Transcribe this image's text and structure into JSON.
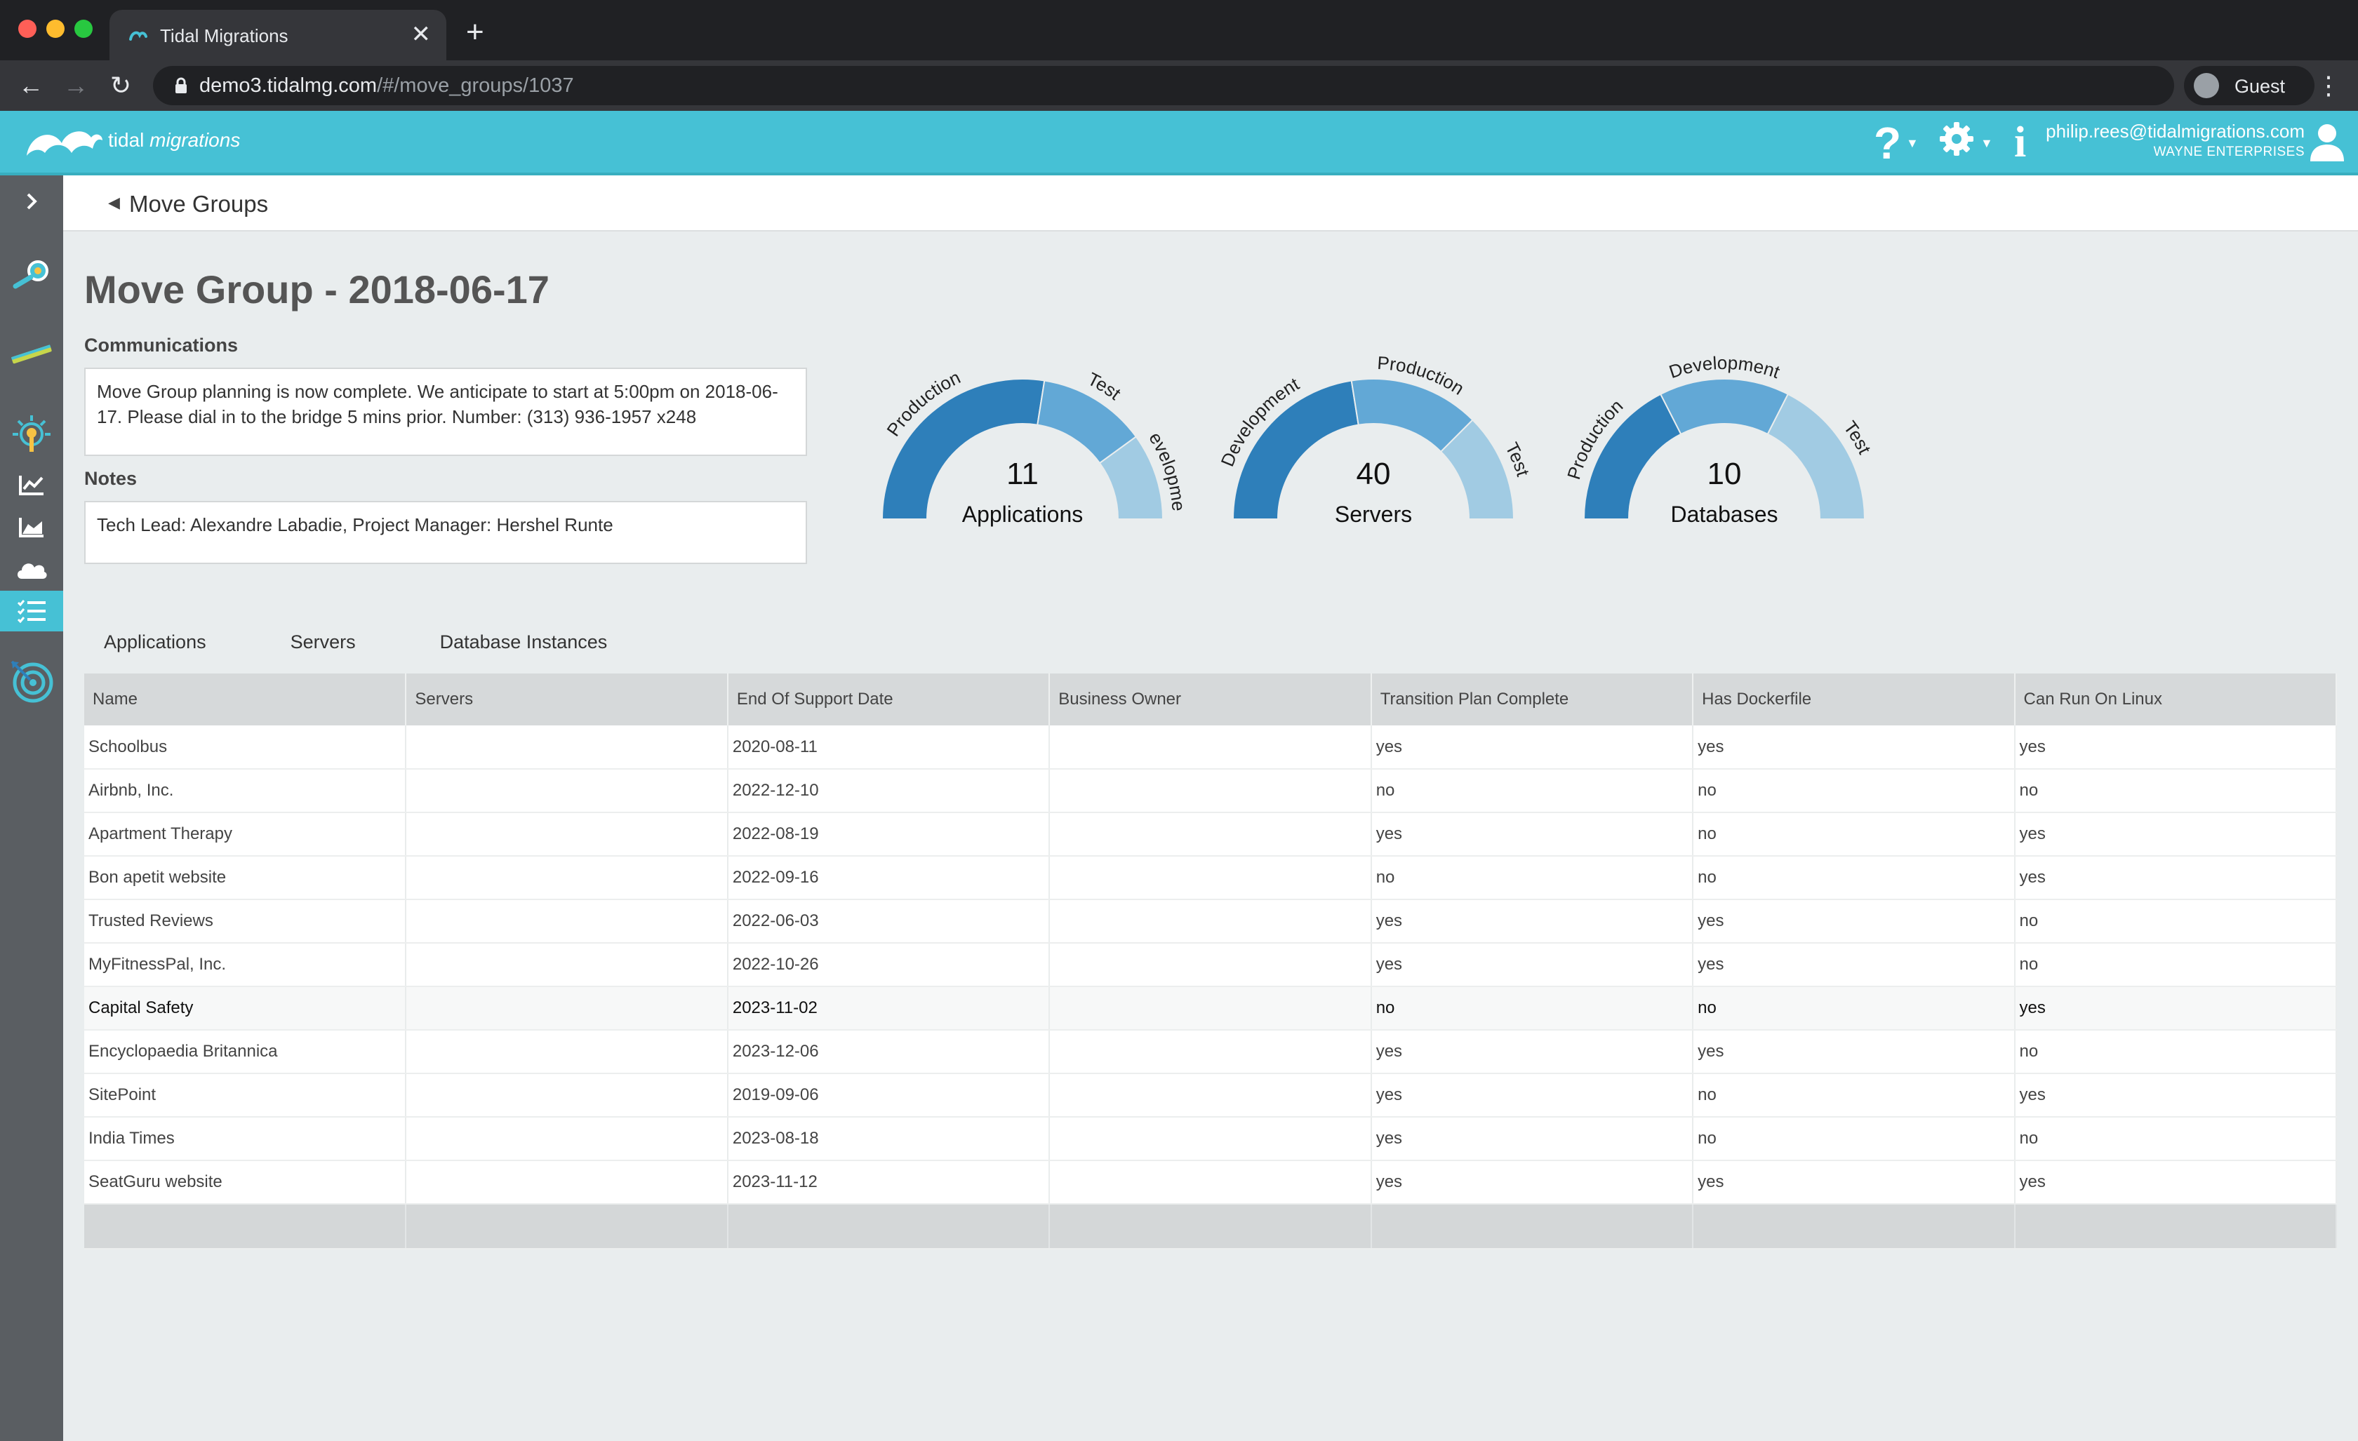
{
  "browser": {
    "tab_title": "Tidal Migrations",
    "new_tab_symbol": "+",
    "close_symbol": "✕",
    "url_host": "demo3.tidalmg.com",
    "url_path": "/#/move_groups/1037",
    "profile_name": "Guest"
  },
  "header": {
    "logo_word1": "tidal",
    "logo_word2": "migrations",
    "help_symbol": "?",
    "info_symbol": "i",
    "user_email": "philip.rees@tidalmigrations.com",
    "user_org": "WAYNE ENTERPRISES"
  },
  "sidebar": {
    "items": [
      {
        "name": "expand",
        "icon": "chevron-right-icon"
      },
      {
        "name": "discover",
        "icon": "magnifier-icon"
      },
      {
        "name": "measure",
        "icon": "ruler-icon"
      },
      {
        "name": "analyze",
        "icon": "lightbulb-icon"
      },
      {
        "name": "trends",
        "icon": "line-chart-icon"
      },
      {
        "name": "insights",
        "icon": "area-chart-icon"
      },
      {
        "name": "cloud",
        "icon": "cloud-icon"
      },
      {
        "name": "plan",
        "icon": "checklist-icon",
        "active": true
      },
      {
        "name": "target",
        "icon": "target-icon"
      }
    ]
  },
  "breadcrumb": {
    "label": "Move Groups"
  },
  "page": {
    "title": "Move Group - 2018-06-17",
    "communications_label": "Communications",
    "communications_text": "Move Group planning is now complete. We anticipate to start at 5:00pm on 2018-06-17. Please dial in to the bridge 5 mins prior. Number: (313) 936-1957 x248",
    "notes_label": "Notes",
    "notes_text": "Tech Lead: Alexandre Labadie, Project Manager: Hershel Runte"
  },
  "colors": {
    "brand": "#46c1d5",
    "gauge_dark": "#2e7fba",
    "gauge_mid": "#62a8d6",
    "gauge_light": "#a1cbe3"
  },
  "gauges": [
    {
      "count": "11",
      "label": "Applications",
      "segments": [
        {
          "name": "Production",
          "fraction": 0.55
        },
        {
          "name": "Test",
          "fraction": 0.25
        },
        {
          "name": "evelopme",
          "fraction": 0.2
        }
      ]
    },
    {
      "count": "40",
      "label": "Servers",
      "segments": [
        {
          "name": "Development",
          "fraction": 0.45
        },
        {
          "name": "Production",
          "fraction": 0.3
        },
        {
          "name": "Test",
          "fraction": 0.25
        }
      ]
    },
    {
      "count": "10",
      "label": "Databases",
      "segments": [
        {
          "name": "Production",
          "fraction": 0.35
        },
        {
          "name": "Development",
          "fraction": 0.3
        },
        {
          "name": "Test",
          "fraction": 0.35
        }
      ]
    }
  ],
  "tabs": [
    "Applications",
    "Servers",
    "Database Instances"
  ],
  "table": {
    "columns": [
      "Name",
      "Servers",
      "End Of Support Date",
      "Business Owner",
      "Transition Plan Complete",
      "Has Dockerfile",
      "Can Run On Linux"
    ],
    "rows": [
      [
        "Schoolbus",
        "",
        "2020-08-11",
        "",
        "yes",
        "yes",
        "yes"
      ],
      [
        "Airbnb, Inc.",
        "",
        "2022-12-10",
        "",
        "no",
        "no",
        "no"
      ],
      [
        "Apartment Therapy",
        "",
        "2022-08-19",
        "",
        "yes",
        "no",
        "yes"
      ],
      [
        "Bon apetit website",
        "",
        "2022-09-16",
        "",
        "no",
        "no",
        "yes"
      ],
      [
        "Trusted Reviews",
        "",
        "2022-06-03",
        "",
        "yes",
        "yes",
        "no"
      ],
      [
        "MyFitnessPal, Inc.",
        "",
        "2022-10-26",
        "",
        "yes",
        "yes",
        "no"
      ],
      [
        "Capital Safety",
        "",
        "2023-11-02",
        "",
        "no",
        "no",
        "yes"
      ],
      [
        "Encyclopaedia Britannica",
        "",
        "2023-12-06",
        "",
        "yes",
        "yes",
        "no"
      ],
      [
        "SitePoint",
        "",
        "2019-09-06",
        "",
        "yes",
        "no",
        "yes"
      ],
      [
        "India Times",
        "",
        "2023-08-18",
        "",
        "yes",
        "no",
        "no"
      ],
      [
        "SeatGuru website",
        "",
        "2023-11-12",
        "",
        "yes",
        "yes",
        "yes"
      ]
    ],
    "highlighted_row": 6
  }
}
